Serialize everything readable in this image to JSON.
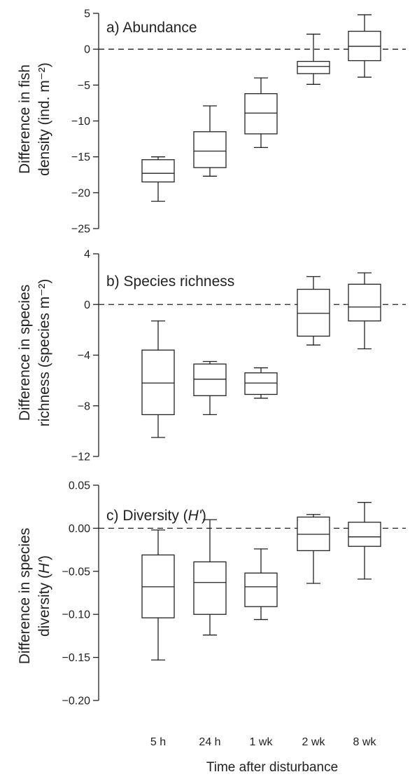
{
  "chart_data": [
    {
      "type": "box",
      "title": "a) Abundance",
      "ylabel_lines": [
        "Difference in fish",
        "density (ind. m⁻²)"
      ],
      "ylim": [
        -25,
        5
      ],
      "yticks": [
        5,
        0,
        -5,
        -10,
        -15,
        -20,
        -25
      ],
      "ytick_labels": [
        "5",
        "0",
        "−5",
        "−10",
        "−15",
        "−20",
        "−25"
      ],
      "zero_line": true,
      "categories": [
        "5 h",
        "24 h",
        "1 wk",
        "2 wk",
        "8 wk"
      ],
      "boxes": [
        {
          "min": -21.2,
          "q1": -18.5,
          "median": -17.3,
          "q3": -15.4,
          "max": -15.0
        },
        {
          "min": -17.7,
          "q1": -16.5,
          "median": -14.2,
          "q3": -11.5,
          "max": -7.9
        },
        {
          "min": -13.7,
          "q1": -11.8,
          "median": -8.9,
          "q3": -6.2,
          "max": -4.0
        },
        {
          "min": -4.9,
          "q1": -3.4,
          "median": -2.4,
          "q3": -1.7,
          "max": 2.1
        },
        {
          "min": -3.9,
          "q1": -1.6,
          "median": 0.4,
          "q3": 2.5,
          "max": 4.8
        }
      ]
    },
    {
      "type": "box",
      "title": "b) Species richness",
      "ylabel_lines": [
        "Difference in species",
        "richness (species m⁻²)"
      ],
      "ylim": [
        -12,
        4
      ],
      "yticks": [
        4,
        0,
        -4,
        -8,
        -12
      ],
      "ytick_labels": [
        "4",
        "0",
        "−4",
        "−8",
        "−12"
      ],
      "zero_line": true,
      "categories": [
        "5 h",
        "24 h",
        "1 wk",
        "2 wk",
        "8 wk"
      ],
      "boxes": [
        {
          "min": -10.5,
          "q1": -8.7,
          "median": -6.2,
          "q3": -3.6,
          "max": -1.3
        },
        {
          "min": -8.7,
          "q1": -7.2,
          "median": -5.9,
          "q3": -4.7,
          "max": -4.5
        },
        {
          "min": -7.4,
          "q1": -7.1,
          "median": -6.2,
          "q3": -5.4,
          "max": -5.0
        },
        {
          "min": -3.2,
          "q1": -2.5,
          "median": -0.7,
          "q3": 1.2,
          "max": 2.2
        },
        {
          "min": -3.5,
          "q1": -1.3,
          "median": -0.2,
          "q3": 1.6,
          "max": 2.5
        }
      ]
    },
    {
      "type": "box",
      "title": "c) Diversity (",
      "title_italic": "H'",
      "title_end": ")",
      "ylabel_line1": "Difference in species",
      "ylabel_line2_prefix": "diversity (",
      "ylabel_line2_italic": "H'",
      "ylabel_line2_suffix": ")",
      "ylim": [
        -0.2,
        0.05
      ],
      "yticks": [
        0.05,
        0.0,
        -0.05,
        -0.1,
        -0.15,
        -0.2
      ],
      "ytick_labels": [
        "0.05",
        "0.00",
        "−0.05",
        "−0.10",
        "−0.15",
        "−0.20"
      ],
      "zero_line": true,
      "categories": [
        "5 h",
        "24 h",
        "1 wk",
        "2 wk",
        "8 wk"
      ],
      "xlabel": "Time after disturbance",
      "boxes": [
        {
          "min": -0.153,
          "q1": -0.104,
          "median": -0.068,
          "q3": -0.031,
          "max": -0.002
        },
        {
          "min": -0.124,
          "q1": -0.1,
          "median": -0.063,
          "q3": -0.039,
          "max": 0.01
        },
        {
          "min": -0.106,
          "q1": -0.091,
          "median": -0.068,
          "q3": -0.052,
          "max": -0.024
        },
        {
          "min": -0.064,
          "q1": -0.026,
          "median": -0.007,
          "q3": 0.013,
          "max": 0.016
        },
        {
          "min": -0.059,
          "q1": -0.021,
          "median": -0.01,
          "q3": 0.007,
          "max": 0.03
        }
      ]
    }
  ]
}
